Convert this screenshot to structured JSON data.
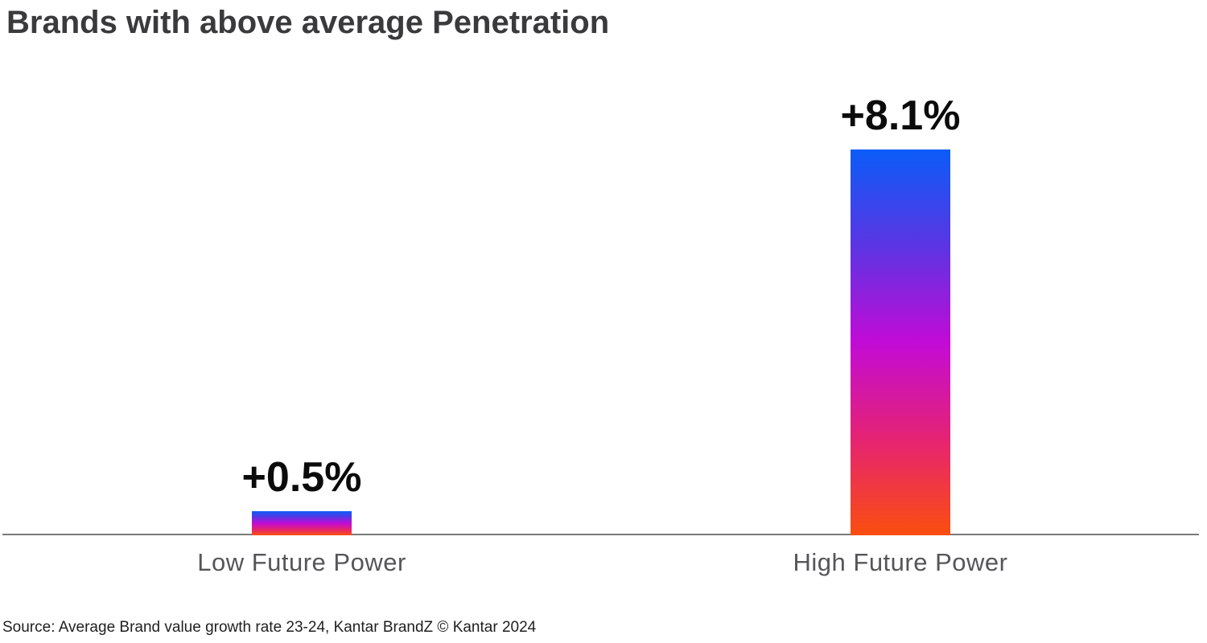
{
  "title": "Brands with above average Penetration",
  "source": "Source: Average Brand value growth rate 23-24, Kantar BrandZ © Kantar 2024",
  "chart_data": {
    "type": "bar",
    "title": "Brands with above average Penetration",
    "categories": [
      "Low Future Power",
      "High Future Power"
    ],
    "values": [
      0.5,
      8.1
    ],
    "value_labels": [
      "+0.5%",
      "+8.1%"
    ],
    "xlabel": "",
    "ylabel": "",
    "ylim": [
      0,
      8.1
    ],
    "grid": false,
    "legend": false,
    "bar_gradient_top_to_bottom": [
      "#0B5CF8",
      "#5B35E3",
      "#C20BD6",
      "#E52373",
      "#FA4E0E"
    ],
    "axis_line_color": "#7A7A7A"
  },
  "colors": {
    "background": "#FFFFFF",
    "title_text": "#3A3A3C",
    "value_label_text": "#0B0B0B",
    "category_label_text": "#54565A",
    "source_text": "#1F1F1F"
  }
}
